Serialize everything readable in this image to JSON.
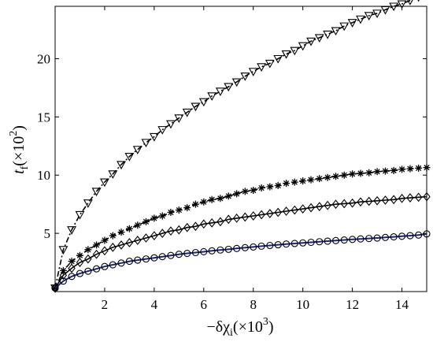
{
  "chart_data": {
    "type": "line",
    "xlabel": "−δχ",
    "xlabel_sub": "i",
    "xlabel_unit": "(×10",
    "xlabel_exp": "3",
    "xlabel_close": ")",
    "ylabel": "t",
    "ylabel_sub": "f",
    "ylabel_unit": "(×10",
    "ylabel_exp": "2",
    "ylabel_close": ")",
    "xlim": [
      0,
      15
    ],
    "ylim": [
      0,
      24.5
    ],
    "xticks": [
      2,
      4,
      6,
      8,
      10,
      12,
      14
    ],
    "yticks": [
      5,
      10,
      15,
      20
    ],
    "grid": false,
    "colors": {
      "axis": "#000000",
      "model_blue": "#1a237e",
      "markers": "#000000"
    },
    "series": [
      {
        "marker": "triangle-down",
        "line": "dashdot",
        "x": [
          0.0,
          0.33,
          0.67,
          1.0,
          1.33,
          1.67,
          2.0,
          2.33,
          2.67,
          3.0,
          3.33,
          3.67,
          4.0,
          4.33,
          4.67,
          5.0,
          5.33,
          5.67,
          6.0,
          6.33,
          6.67,
          7.0,
          7.33,
          7.67,
          8.0,
          8.33,
          8.67,
          9.0,
          9.33,
          9.67,
          10.0,
          10.33,
          10.67,
          11.0,
          11.33,
          11.67,
          12.0,
          12.33,
          12.67,
          13.0,
          13.33,
          13.67,
          14.0,
          14.33,
          14.67,
          15.0
        ],
        "values": [
          0.3,
          3.6,
          5.3,
          6.6,
          7.6,
          8.6,
          9.4,
          10.1,
          10.9,
          11.6,
          12.2,
          12.8,
          13.3,
          13.9,
          14.4,
          14.9,
          15.4,
          15.9,
          16.3,
          16.8,
          17.2,
          17.6,
          18.0,
          18.5,
          18.9,
          19.3,
          19.6,
          20.0,
          20.4,
          20.7,
          21.1,
          21.5,
          21.8,
          22.1,
          22.4,
          22.8,
          23.1,
          23.4,
          23.7,
          23.9,
          24.2,
          24.5,
          24.7,
          25.0,
          25.3,
          25.6
        ]
      },
      {
        "marker": "asterisk",
        "line": "dashed",
        "x": [
          0.0,
          0.33,
          0.67,
          1.0,
          1.33,
          1.67,
          2.0,
          2.33,
          2.67,
          3.0,
          3.33,
          3.67,
          4.0,
          4.33,
          4.67,
          5.0,
          5.33,
          5.67,
          6.0,
          6.33,
          6.67,
          7.0,
          7.33,
          7.67,
          8.0,
          8.33,
          8.67,
          9.0,
          9.33,
          9.67,
          10.0,
          10.33,
          10.67,
          11.0,
          11.33,
          11.67,
          12.0,
          12.33,
          12.67,
          13.0,
          13.33,
          13.67,
          14.0,
          14.33,
          14.67,
          15.0
        ],
        "values": [
          0.3,
          1.8,
          2.6,
          3.1,
          3.6,
          4.0,
          4.4,
          4.8,
          5.1,
          5.4,
          5.7,
          6.0,
          6.3,
          6.5,
          6.8,
          7.0,
          7.2,
          7.5,
          7.7,
          7.9,
          8.0,
          8.2,
          8.4,
          8.6,
          8.7,
          8.9,
          9.0,
          9.1,
          9.3,
          9.4,
          9.5,
          9.6,
          9.7,
          9.8,
          9.9,
          10.0,
          10.1,
          10.15,
          10.2,
          10.3,
          10.35,
          10.4,
          10.5,
          10.55,
          10.6,
          10.65
        ]
      },
      {
        "marker": "diamond",
        "line": "solid",
        "x": [
          0.0,
          0.33,
          0.67,
          1.0,
          1.33,
          1.67,
          2.0,
          2.33,
          2.67,
          3.0,
          3.33,
          3.67,
          4.0,
          4.33,
          4.67,
          5.0,
          5.33,
          5.67,
          6.0,
          6.33,
          6.67,
          7.0,
          7.33,
          7.67,
          8.0,
          8.33,
          8.67,
          9.0,
          9.33,
          9.67,
          10.0,
          10.33,
          10.67,
          11.0,
          11.33,
          11.67,
          12.0,
          12.33,
          12.67,
          13.0,
          13.33,
          13.67,
          14.0,
          14.33,
          14.67,
          15.0
        ],
        "values": [
          0.3,
          1.4,
          2.0,
          2.5,
          2.8,
          3.2,
          3.5,
          3.8,
          4.0,
          4.2,
          4.4,
          4.6,
          4.8,
          5.0,
          5.2,
          5.3,
          5.5,
          5.6,
          5.8,
          5.9,
          6.0,
          6.2,
          6.3,
          6.4,
          6.5,
          6.6,
          6.7,
          6.8,
          6.9,
          7.0,
          7.1,
          7.2,
          7.3,
          7.4,
          7.5,
          7.55,
          7.6,
          7.7,
          7.75,
          7.8,
          7.85,
          7.9,
          8.0,
          8.05,
          8.1,
          8.15
        ]
      },
      {
        "marker": "circle",
        "line": "solid-blue",
        "x": [
          0.0,
          0.33,
          0.67,
          1.0,
          1.33,
          1.67,
          2.0,
          2.33,
          2.67,
          3.0,
          3.33,
          3.67,
          4.0,
          4.33,
          4.67,
          5.0,
          5.33,
          5.67,
          6.0,
          6.33,
          6.67,
          7.0,
          7.33,
          7.67,
          8.0,
          8.33,
          8.67,
          9.0,
          9.33,
          9.67,
          10.0,
          10.33,
          10.67,
          11.0,
          11.33,
          11.67,
          12.0,
          12.33,
          12.67,
          13.0,
          13.33,
          13.67,
          14.0,
          14.33,
          14.67,
          15.0
        ],
        "values": [
          0.3,
          0.9,
          1.3,
          1.55,
          1.75,
          1.95,
          2.15,
          2.3,
          2.45,
          2.6,
          2.7,
          2.8,
          2.9,
          3.0,
          3.1,
          3.2,
          3.28,
          3.35,
          3.42,
          3.5,
          3.57,
          3.63,
          3.7,
          3.77,
          3.83,
          3.9,
          3.96,
          4.02,
          4.08,
          4.13,
          4.18,
          4.23,
          4.28,
          4.33,
          4.38,
          4.43,
          4.48,
          4.52,
          4.56,
          4.6,
          4.65,
          4.7,
          4.75,
          4.8,
          4.85,
          4.95
        ]
      }
    ]
  }
}
